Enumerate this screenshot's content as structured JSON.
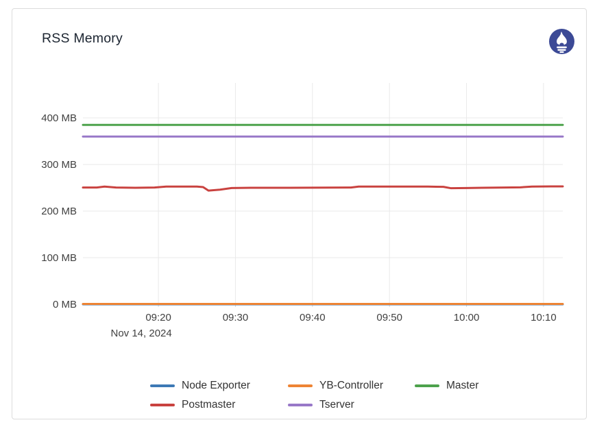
{
  "card": {
    "brand_icon": "prometheus-logo",
    "brand_color": "#3c4a96"
  },
  "theme": {
    "grid_color": "#e9e9e9",
    "axis_text_color": "#404040",
    "card_border_color": "#dcdcdc",
    "title_color": "#1c2531"
  },
  "chart_data": {
    "type": "line",
    "title": "RSS Memory",
    "xlabel": "",
    "ylabel": "",
    "grid": true,
    "legend_position": "bottom",
    "x_axis": {
      "date_label": "Nov 14, 2024",
      "range_minutes": [
        550.2,
        612.5
      ],
      "ticks": [
        {
          "m": 560,
          "label": "09:20"
        },
        {
          "m": 570,
          "label": "09:30"
        },
        {
          "m": 580,
          "label": "09:40"
        },
        {
          "m": 590,
          "label": "09:50"
        },
        {
          "m": 600,
          "label": "10:00"
        },
        {
          "m": 610,
          "label": "10:10"
        }
      ]
    },
    "y_axis": {
      "unit": "MB",
      "lim": [
        0,
        475
      ],
      "ticks": [
        {
          "v": 0,
          "label": "0 MB"
        },
        {
          "v": 100,
          "label": "100 MB"
        },
        {
          "v": 200,
          "label": "200 MB"
        },
        {
          "v": 300,
          "label": "300 MB"
        },
        {
          "v": 400,
          "label": "400 MB"
        }
      ]
    },
    "series": [
      {
        "name": "Node Exporter",
        "color": "#3d79b5",
        "x": [
          550.2,
          612.5
        ],
        "values": [
          0,
          0
        ]
      },
      {
        "name": "YB-Controller",
        "color": "#ee8434",
        "x": [
          550.2,
          612.5
        ],
        "values": [
          0.8,
          0.8
        ]
      },
      {
        "name": "Master",
        "color": "#4da24c",
        "x": [
          550.2,
          612.5
        ],
        "values": [
          385,
          385
        ]
      },
      {
        "name": "Postmaster",
        "color": "#c9423f",
        "x": [
          550.2,
          552,
          553,
          554.5,
          557,
          559.5,
          561,
          565,
          565.8,
          566.5,
          568,
          569.5,
          572,
          577,
          582,
          585,
          586,
          595,
          597,
          598,
          600,
          602,
          605,
          607,
          608.5,
          611,
          612.5
        ],
        "values": [
          250.5,
          250.5,
          252.5,
          250.5,
          250,
          250.5,
          252.5,
          252.5,
          251.5,
          244,
          246,
          249.5,
          250,
          250,
          250.3,
          250.5,
          252.5,
          252.5,
          252,
          249,
          249.5,
          250,
          250.5,
          251,
          252.5,
          253,
          253
        ]
      },
      {
        "name": "Tserver",
        "color": "#9878c8",
        "x": [
          550.2,
          612.5
        ],
        "values": [
          360,
          360
        ]
      }
    ]
  }
}
